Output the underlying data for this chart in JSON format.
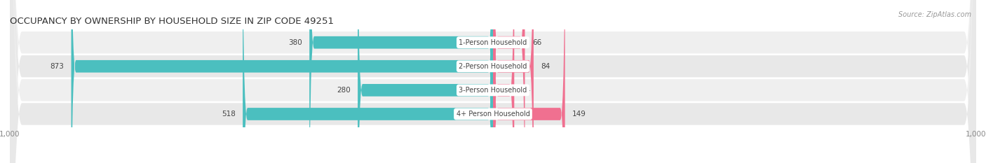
{
  "title": "OCCUPANCY BY OWNERSHIP BY HOUSEHOLD SIZE IN ZIP CODE 49251",
  "source": "Source: ZipAtlas.com",
  "categories": [
    "1-Person Household",
    "2-Person Household",
    "3-Person Household",
    "4+ Person Household"
  ],
  "owner_values": [
    380,
    873,
    280,
    518
  ],
  "renter_values": [
    66,
    84,
    44,
    149
  ],
  "owner_color": "#4BBFBF",
  "renter_color": "#F07090",
  "row_bg_odd": "#EFEFEF",
  "row_bg_even": "#E8E8E8",
  "axis_max": 1000,
  "title_fontsize": 9.5,
  "source_fontsize": 7,
  "bar_label_fontsize": 7.5,
  "category_fontsize": 7,
  "legend_fontsize": 7.5,
  "axis_label_fontsize": 7.5
}
